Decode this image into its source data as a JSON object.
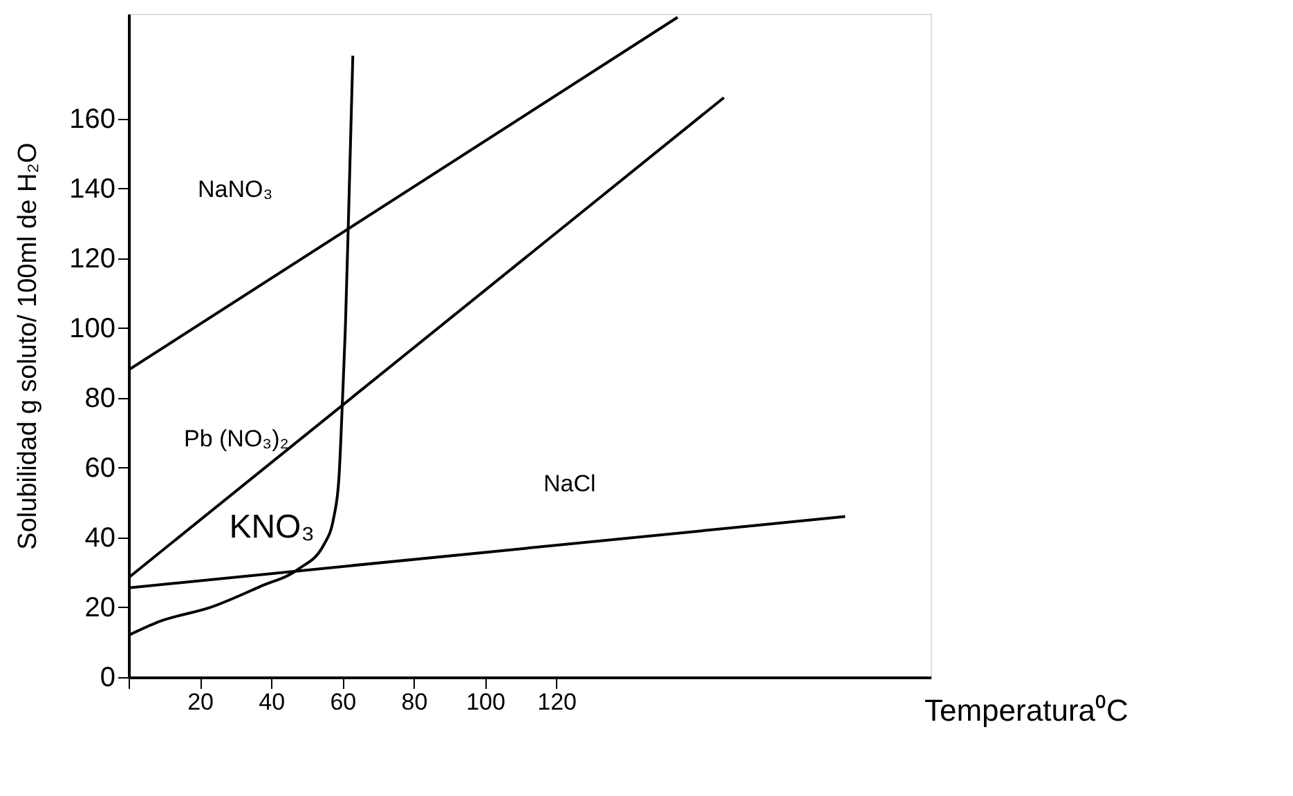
{
  "chart_data": {
    "type": "line",
    "xlabel": "Temperatura⁰C",
    "ylabel": "Solubilidad g soluto/ 100ml de H₂O",
    "xlim": [
      0,
      225
    ],
    "ylim": [
      0,
      190
    ],
    "xticks": [
      {
        "value": 0,
        "label": null
      },
      20,
      40,
      60,
      80,
      100,
      120
    ],
    "yticks": [
      0,
      20,
      40,
      60,
      80,
      100,
      120,
      140,
      160
    ],
    "grid": false,
    "marker": "none",
    "line_style": "solid",
    "series": [
      {
        "name": "NaNO₃",
        "color": "#000000",
        "x": [
          0,
          154
        ],
        "values": [
          88,
          189
        ]
      },
      {
        "name": "Pb (NO₃)₂",
        "color": "#000000",
        "x": [
          0,
          167
        ],
        "values": [
          28.5,
          166
        ]
      },
      {
        "name": "KNO₃",
        "color": "#000000",
        "x": [
          0,
          8.8,
          23,
          37,
          47.7,
          54.8,
          57.6,
          59,
          60.1,
          60.8,
          61.8,
          62.9
        ],
        "values": [
          12,
          16,
          20,
          26,
          31,
          38,
          46,
          57,
          82,
          100,
          136,
          178
        ]
      },
      {
        "name": "NaCl",
        "color": "#000000",
        "x": [
          0,
          201
        ],
        "values": [
          25.6,
          46
        ]
      }
    ]
  }
}
